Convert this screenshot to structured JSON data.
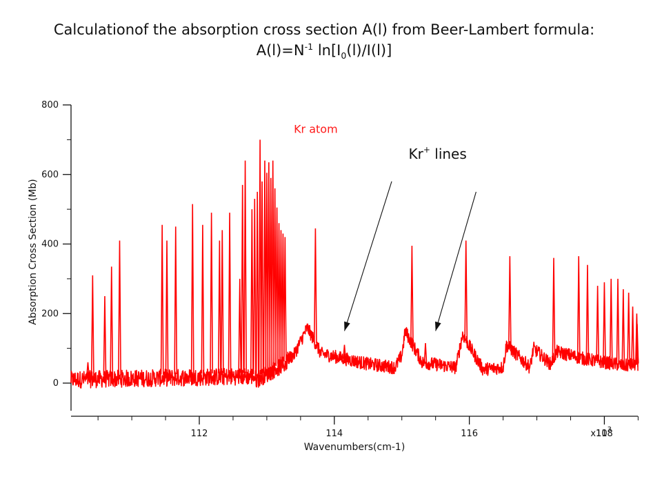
{
  "title": {
    "line1": "Calculationof the  absorption cross section A(l) from Beer-Lambert formula:",
    "line2_a": "A(l)=N",
    "line2_sup": "-1",
    "line2_b": " ln[I",
    "line2_sub": "0",
    "line2_c": "(l)/I(l)]"
  },
  "chart_data": {
    "type": "line",
    "title": "",
    "xlabel": "Wavenumbers(cm-1)",
    "ylabel": "Absorption Cross Section (Mb)",
    "x_scale_multiplier": "x10",
    "x_scale_exponent": "3",
    "xlim": [
      110.1,
      118.7
    ],
    "ylim": [
      -80,
      800
    ],
    "x_ticks": [
      112,
      114,
      116,
      118
    ],
    "x_tick_labels": [
      "112",
      "114",
      "116",
      "118"
    ],
    "y_ticks": [
      0,
      200,
      400,
      600,
      800
    ],
    "y_tick_labels": [
      "0",
      "200",
      "400",
      "600",
      "800"
    ],
    "grid": false,
    "legend": "none",
    "series_color": "#ff0000",
    "baseline": [
      {
        "x": 110.1,
        "y": 20
      },
      {
        "x": 112.8,
        "y": 30
      },
      {
        "x": 112.85,
        "y": 20
      },
      {
        "x": 113.4,
        "y": 80
      },
      {
        "x": 113.6,
        "y": 160
      },
      {
        "x": 113.8,
        "y": 85
      },
      {
        "x": 114.5,
        "y": 55
      },
      {
        "x": 114.9,
        "y": 45
      },
      {
        "x": 115.0,
        "y": 80
      },
      {
        "x": 115.05,
        "y": 150
      },
      {
        "x": 115.3,
        "y": 60
      },
      {
        "x": 115.8,
        "y": 45
      },
      {
        "x": 115.9,
        "y": 140
      },
      {
        "x": 116.2,
        "y": 40
      },
      {
        "x": 116.5,
        "y": 45
      },
      {
        "x": 116.55,
        "y": 110
      },
      {
        "x": 116.9,
        "y": 45
      },
      {
        "x": 116.95,
        "y": 100
      },
      {
        "x": 117.2,
        "y": 55
      },
      {
        "x": 117.3,
        "y": 90
      },
      {
        "x": 117.7,
        "y": 70
      },
      {
        "x": 118.3,
        "y": 50
      },
      {
        "x": 118.7,
        "y": 60
      }
    ],
    "peaks": [
      {
        "x": 110.35,
        "y": 60
      },
      {
        "x": 110.42,
        "y": 310
      },
      {
        "x": 110.6,
        "y": 250
      },
      {
        "x": 110.7,
        "y": 335
      },
      {
        "x": 110.82,
        "y": 410
      },
      {
        "x": 111.45,
        "y": 455
      },
      {
        "x": 111.52,
        "y": 410
      },
      {
        "x": 111.65,
        "y": 450
      },
      {
        "x": 111.9,
        "y": 515
      },
      {
        "x": 112.05,
        "y": 455
      },
      {
        "x": 112.18,
        "y": 490
      },
      {
        "x": 112.3,
        "y": 410
      },
      {
        "x": 112.34,
        "y": 440
      },
      {
        "x": 112.45,
        "y": 490
      },
      {
        "x": 112.6,
        "y": 300
      },
      {
        "x": 112.64,
        "y": 570
      },
      {
        "x": 112.68,
        "y": 640
      },
      {
        "x": 112.78,
        "y": 500
      },
      {
        "x": 112.82,
        "y": 530
      },
      {
        "x": 112.86,
        "y": 550
      },
      {
        "x": 112.9,
        "y": 700
      },
      {
        "x": 112.93,
        "y": 580
      },
      {
        "x": 112.97,
        "y": 640
      },
      {
        "x": 113.0,
        "y": 605
      },
      {
        "x": 113.03,
        "y": 635
      },
      {
        "x": 113.06,
        "y": 590
      },
      {
        "x": 113.09,
        "y": 640
      },
      {
        "x": 113.12,
        "y": 560
      },
      {
        "x": 113.15,
        "y": 505
      },
      {
        "x": 113.18,
        "y": 460
      },
      {
        "x": 113.21,
        "y": 440
      },
      {
        "x": 113.24,
        "y": 430
      },
      {
        "x": 113.27,
        "y": 420
      },
      {
        "x": 113.72,
        "y": 445
      },
      {
        "x": 114.15,
        "y": 110
      },
      {
        "x": 115.15,
        "y": 395
      },
      {
        "x": 115.35,
        "y": 115
      },
      {
        "x": 115.95,
        "y": 410
      },
      {
        "x": 116.6,
        "y": 365
      },
      {
        "x": 117.25,
        "y": 360
      },
      {
        "x": 117.62,
        "y": 365
      },
      {
        "x": 117.75,
        "y": 340
      },
      {
        "x": 117.9,
        "y": 280
      },
      {
        "x": 118.0,
        "y": 290
      },
      {
        "x": 118.1,
        "y": 300
      },
      {
        "x": 118.2,
        "y": 300
      },
      {
        "x": 118.28,
        "y": 270
      },
      {
        "x": 118.36,
        "y": 260
      },
      {
        "x": 118.42,
        "y": 220
      },
      {
        "x": 118.48,
        "y": 200
      },
      {
        "x": 118.54,
        "y": 170
      },
      {
        "x": 118.6,
        "y": 130
      },
      {
        "x": 118.66,
        "y": 100
      }
    ],
    "annotations": [
      {
        "id": "kr-atom",
        "text": "Kr atom",
        "x": 113.4,
        "y": 720
      },
      {
        "id": "kr-plus",
        "text_base": "Kr",
        "text_sup": "+",
        "text_rest": " lines",
        "x": 115.1,
        "y": 645
      }
    ],
    "arrows": [
      {
        "from": {
          "x": 114.85,
          "y": 580
        },
        "to": {
          "x": 114.15,
          "y": 150
        }
      },
      {
        "from": {
          "x": 116.1,
          "y": 550
        },
        "to": {
          "x": 115.5,
          "y": 150
        }
      }
    ]
  }
}
